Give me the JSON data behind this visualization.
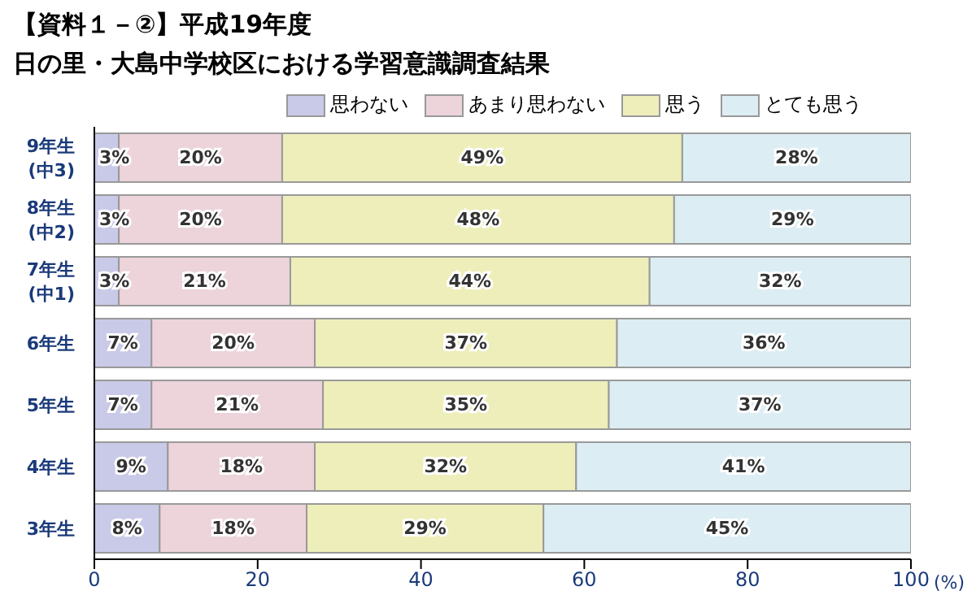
{
  "chart_data": {
    "type": "bar",
    "orientation": "horizontal",
    "stacked": true,
    "title": "【資料１－②】平成19年度",
    "subtitle": "日の里・大島中学校区における学習意識調査結果",
    "xlabel": "(%)",
    "categories": [
      "9年生\n(中3)",
      "8年生\n(中2)",
      "7年生\n(中1)",
      "6年生",
      "5年生",
      "4年生",
      "3年生"
    ],
    "series": [
      {
        "name": "思わない",
        "color": "#c9c9e8",
        "values": [
          3,
          3,
          3,
          7,
          7,
          9,
          8
        ],
        "value_labels": [
          "3%",
          "3%",
          "3%",
          "7%",
          "7%",
          "9%",
          "8%"
        ]
      },
      {
        "name": "あまり思わない",
        "color": "#ecd4da",
        "values": [
          20,
          20,
          21,
          20,
          21,
          18,
          18
        ],
        "value_labels": [
          "20%",
          "20%",
          "21%",
          "20%",
          "21%",
          "18%",
          "18%"
        ]
      },
      {
        "name": "思う",
        "color": "#eeeebb",
        "values": [
          49,
          48,
          44,
          37,
          35,
          32,
          29
        ],
        "value_labels": [
          "49%",
          "48%",
          "44%",
          "37%",
          "35%",
          "32%",
          "29%"
        ]
      },
      {
        "name": "とても思う",
        "color": "#dcedf4",
        "values": [
          28,
          29,
          32,
          36,
          37,
          41,
          45
        ],
        "value_labels": [
          "28%",
          "29%",
          "32%",
          "36%",
          "37%",
          "41%",
          "45%"
        ]
      }
    ],
    "xlim": [
      0,
      100
    ],
    "xticks": [
      0,
      20,
      40,
      60,
      80,
      100
    ],
    "grid": false,
    "legend": "top right"
  }
}
